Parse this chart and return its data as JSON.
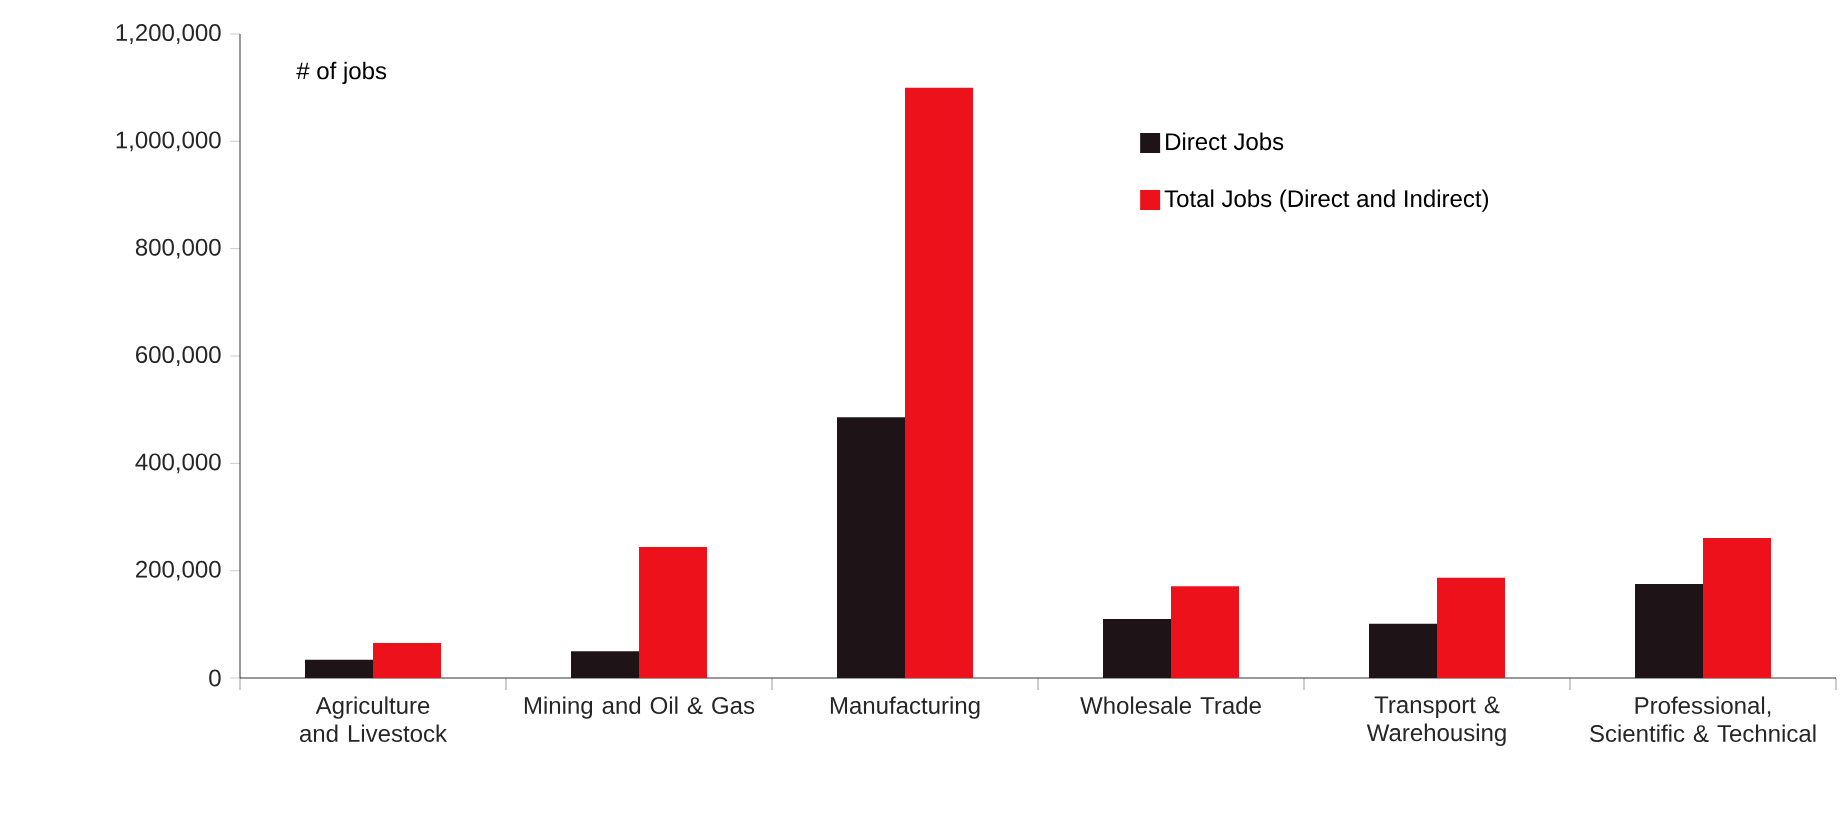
{
  "chart_data": {
    "type": "bar",
    "ylabel": "# of jobs",
    "categories": [
      "Agriculture and Livestock",
      "Mining and Oil & Gas",
      "Manufacturing",
      "Wholesale Trade",
      "Transport & Warehousing",
      "Professional, Scientific & Technical"
    ],
    "series": [
      {
        "name": "Direct Jobs",
        "color": "#1e1418",
        "values": [
          34000,
          50000,
          486000,
          110000,
          101000,
          175000
        ]
      },
      {
        "name": "Total Jobs (Direct and Indirect)",
        "color": "#ec111a",
        "values": [
          65000,
          244000,
          1100000,
          171000,
          187000,
          261000
        ]
      }
    ],
    "ylim": [
      0,
      1200000
    ],
    "yticks": [
      0,
      {
        "value": 200000,
        "label": "200,000"
      },
      {
        "value": 400000,
        "label": "400,000"
      },
      {
        "value": 600000,
        "label": "600,000"
      },
      {
        "value": 800000,
        "label": "800,000"
      },
      {
        "value": 1000000,
        "label": "1,000,000"
      },
      {
        "value": 1200000,
        "label": "1,200,000"
      }
    ],
    "grid": false,
    "legend": "top right"
  }
}
